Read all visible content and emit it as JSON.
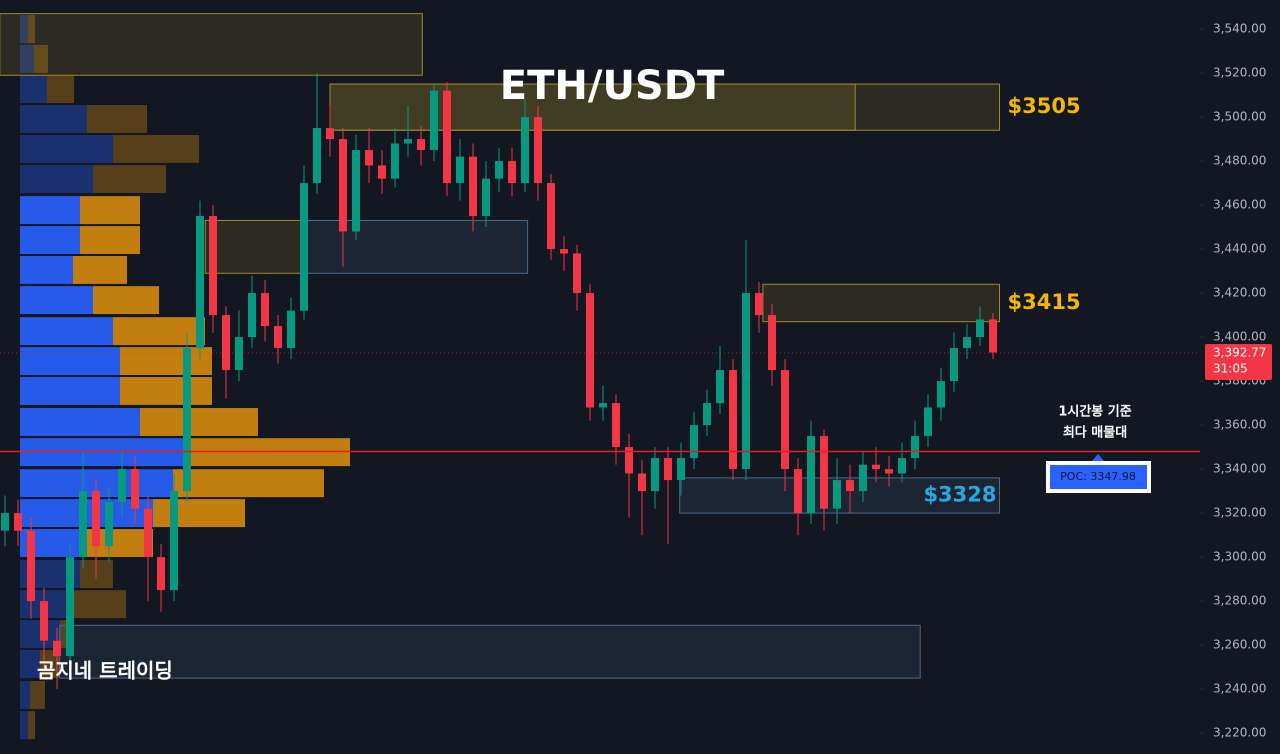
{
  "chart_data": {
    "type": "candlestick",
    "title": "ETH/USDT",
    "watermark": "곰지네 트레이딩",
    "up_color": "#089981",
    "down_color": "#f23645",
    "ylim": [
      3210.5,
      3553.2
    ],
    "yticks": [
      {
        "value": 3220,
        "label": "3,220.00"
      },
      {
        "value": 3240,
        "label": "3,240.00"
      },
      {
        "value": 3260,
        "label": "3,260.00"
      },
      {
        "value": 3280,
        "label": "3,280.00"
      },
      {
        "value": 3300,
        "label": "3,300.00"
      },
      {
        "value": 3320,
        "label": "3,320.00"
      },
      {
        "value": 3340,
        "label": "3,340.00"
      },
      {
        "value": 3360,
        "label": "3,360.00"
      },
      {
        "value": 3380,
        "label": "3,380.00"
      },
      {
        "value": 3400,
        "label": "3,400.00"
      },
      {
        "value": 3420,
        "label": "3,420.00"
      },
      {
        "value": 3440,
        "label": "3,440.00"
      },
      {
        "value": 3460,
        "label": "3,460.00"
      },
      {
        "value": 3480,
        "label": "3,480.00"
      },
      {
        "value": 3500,
        "label": "3,500.00"
      },
      {
        "value": 3520,
        "label": "3,520.00"
      },
      {
        "value": 3540,
        "label": "3,540.00"
      }
    ],
    "open": [
      3312,
      3320,
      3312,
      3280,
      3262,
      3255,
      3300,
      3330,
      3305,
      3325,
      3340,
      3322,
      3300,
      3285,
      3330,
      3395,
      3455,
      3410,
      3385,
      3400,
      3420,
      3405,
      3395,
      3412,
      3470,
      3495,
      3490,
      3448,
      3485,
      3478,
      3472,
      3488,
      3490,
      3485,
      3512,
      3470,
      3482,
      3455,
      3472,
      3480,
      3470,
      3500,
      3470,
      3440,
      3438,
      3420,
      3368,
      3370,
      3350,
      3338,
      3330,
      3345,
      3335,
      3345,
      3360,
      3370,
      3385,
      3340,
      3420,
      3410,
      3385,
      3340,
      3320,
      3355,
      3322,
      3335,
      3330,
      3342,
      3340,
      3338,
      3345,
      3355,
      3368,
      3380,
      3395,
      3400,
      3408
    ],
    "high": [
      3328,
      3326,
      3318,
      3286,
      3268,
      3306,
      3348,
      3336,
      3332,
      3348,
      3346,
      3328,
      3306,
      3338,
      3402,
      3462,
      3460,
      3414,
      3412,
      3428,
      3426,
      3410,
      3418,
      3478,
      3520,
      3505,
      3495,
      3492,
      3495,
      3485,
      3495,
      3505,
      3496,
      3515,
      3516,
      3490,
      3488,
      3480,
      3486,
      3486,
      3508,
      3505,
      3474,
      3446,
      3442,
      3424,
      3378,
      3374,
      3356,
      3344,
      3350,
      3350,
      3352,
      3366,
      3376,
      3396,
      3390,
      3444,
      3425,
      3415,
      3390,
      3345,
      3362,
      3358,
      3345,
      3342,
      3348,
      3350,
      3346,
      3352,
      3362,
      3374,
      3386,
      3402,
      3406,
      3414,
      3411
    ],
    "low": [
      3305,
      3305,
      3272,
      3250,
      3240,
      3250,
      3295,
      3290,
      3298,
      3318,
      3315,
      3280,
      3275,
      3280,
      3325,
      3390,
      3402,
      3372,
      3380,
      3395,
      3398,
      3388,
      3390,
      3408,
      3465,
      3482,
      3432,
      3444,
      3470,
      3465,
      3468,
      3482,
      3478,
      3480,
      3464,
      3462,
      3448,
      3450,
      3466,
      3464,
      3466,
      3462,
      3435,
      3430,
      3412,
      3362,
      3362,
      3342,
      3318,
      3310,
      3322,
      3306,
      3328,
      3340,
      3355,
      3365,
      3335,
      3335,
      3402,
      3378,
      3330,
      3310,
      3315,
      3312,
      3315,
      3320,
      3325,
      3334,
      3332,
      3334,
      3340,
      3350,
      3362,
      3375,
      3390,
      3396,
      3390
    ],
    "close": [
      3320,
      3312,
      3280,
      3262,
      3255,
      3300,
      3330,
      3305,
      3325,
      3340,
      3322,
      3300,
      3285,
      3330,
      3395,
      3455,
      3410,
      3385,
      3400,
      3420,
      3405,
      3395,
      3412,
      3470,
      3495,
      3490,
      3448,
      3485,
      3478,
      3472,
      3488,
      3490,
      3485,
      3512,
      3470,
      3482,
      3455,
      3472,
      3480,
      3470,
      3500,
      3470,
      3440,
      3438,
      3420,
      3368,
      3370,
      3350,
      3338,
      3330,
      3345,
      3335,
      3345,
      3360,
      3370,
      3385,
      3340,
      3420,
      3410,
      3385,
      3340,
      3320,
      3355,
      3322,
      3335,
      3330,
      3342,
      3340,
      3338,
      3345,
      3355,
      3368,
      3380,
      3395,
      3400,
      3408,
      3393
    ],
    "zones": [
      {
        "from": -0.4,
        "to": 32.1,
        "top": 3547,
        "bottom": 3519,
        "color": "#a08a2a"
      },
      {
        "from": 25,
        "to": 65.4,
        "top": 3515,
        "bottom": 3494,
        "color": "#a08a2a"
      },
      {
        "from": 25,
        "to": 76.5,
        "top": 3515,
        "bottom": 3494,
        "color": "#a08a2a",
        "label": "$3505",
        "label_color": "#f5b800"
      },
      {
        "from": 15.4,
        "to": 23.1,
        "top": 3453,
        "bottom": 3429,
        "color": "#a08a2a"
      },
      {
        "from": 23.1,
        "to": 40.2,
        "top": 3453,
        "bottom": 3429,
        "color": "#4a6a8a"
      },
      {
        "from": 58.3,
        "to": 76.5,
        "top": 3424,
        "bottom": 3407,
        "color": "#a08a2a",
        "label": "$3415",
        "label_color": "#f5b800"
      },
      {
        "from": 51.9,
        "to": 76.5,
        "top": 3336,
        "bottom": 3320,
        "color": "#4a6a8a",
        "label": "$3328",
        "label_color": "#29a8e0"
      },
      {
        "from": 4.2,
        "to": 70.4,
        "top": 3269,
        "bottom": 3245,
        "color": "#4a6a8a"
      }
    ],
    "profile": {
      "levels": [
        3540,
        3526.4,
        3512.7,
        3499.1,
        3485.5,
        3471.8,
        3457.7,
        3444.1,
        3430.5,
        3416.8,
        3402.7,
        3389.1,
        3375.5,
        3361.4,
        3347.7,
        3333.6,
        3320,
        3306.4,
        3292.3,
        3278.6,
        3265,
        3251.4,
        3237.3,
        3223.6
      ],
      "buy": [
        8,
        14,
        27,
        67,
        93,
        73,
        60,
        60,
        53,
        73,
        93,
        100,
        100,
        120,
        166,
        153,
        133,
        67,
        60,
        53,
        40,
        20,
        10,
        8
      ],
      "sell": [
        7,
        14,
        27,
        60,
        86,
        73,
        60,
        60,
        54,
        66,
        92,
        92,
        92,
        118,
        164,
        151,
        92,
        66,
        33,
        53,
        13,
        20,
        15,
        7
      ],
      "buy_color": "#2962ff",
      "sell_color": "#d68a0c",
      "value_area": [
        3300,
        3465
      ]
    },
    "poc": {
      "value": 3347.98,
      "label": "POC: 3347.98",
      "note": [
        "1시간봉 기준",
        "최다 매물대"
      ]
    },
    "last_price": {
      "value": 3392.77,
      "label": "3,392.77",
      "timer": "31:05"
    }
  }
}
